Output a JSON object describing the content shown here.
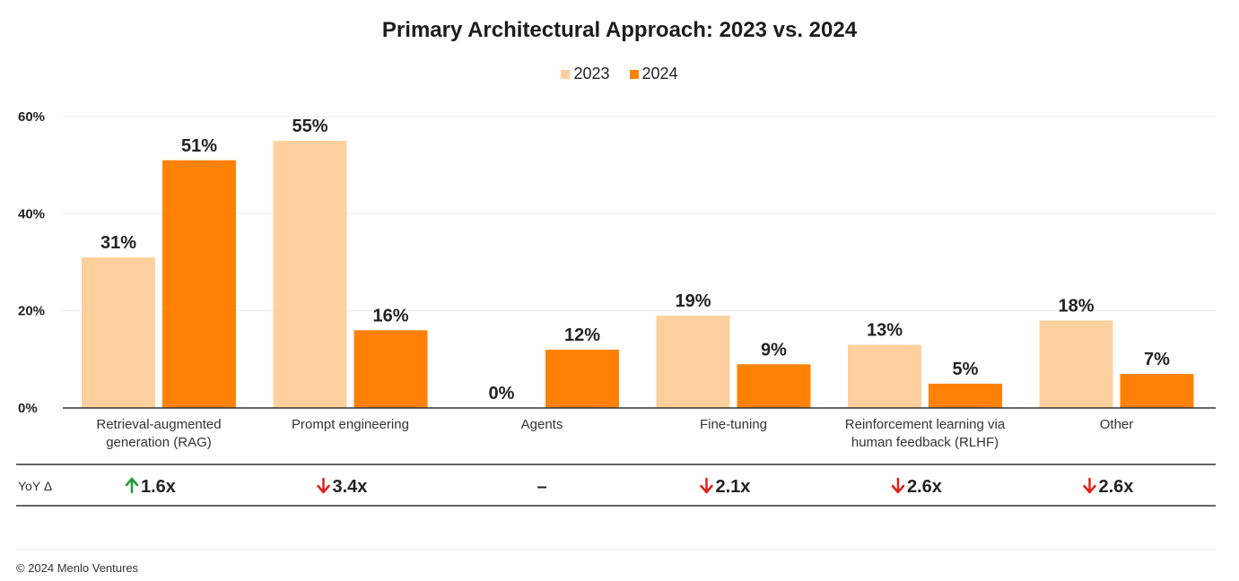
{
  "chart_data": {
    "type": "bar",
    "title": "Primary Architectural Approach: 2023 vs. 2024",
    "categories": [
      [
        "Retrieval-augmented",
        "generation (RAG)"
      ],
      [
        "Prompt engineering"
      ],
      [
        "Agents"
      ],
      [
        "Fine-tuning"
      ],
      [
        "Reinforcement learning via",
        "human feedback (RLHF)"
      ],
      [
        "Other"
      ]
    ],
    "series": [
      {
        "name": "2023",
        "color": "#FDD09D",
        "values": [
          31,
          55,
          0,
          19,
          13,
          18
        ],
        "labels": [
          "31%",
          "55%",
          "0%",
          "19%",
          "13%",
          "18%"
        ]
      },
      {
        "name": "2024",
        "color": "#FF8207",
        "values": [
          51,
          16,
          12,
          9,
          5,
          7
        ],
        "labels": [
          "51%",
          "16%",
          "12%",
          "9%",
          "5%",
          "7%"
        ]
      }
    ],
    "ylim": [
      0,
      60
    ],
    "yticks": [
      0,
      20,
      40,
      60
    ],
    "ytick_labels": [
      "0%",
      "20%",
      "40%",
      "60%"
    ],
    "grid": true,
    "legend_position": "top-center",
    "yoy": {
      "label": "YoY Δ",
      "values": [
        {
          "direction": "up",
          "text": "1.6x"
        },
        {
          "direction": "down",
          "text": "3.4x"
        },
        {
          "direction": "none",
          "text": "–"
        },
        {
          "direction": "down",
          "text": "2.1x"
        },
        {
          "direction": "down",
          "text": "2.6x"
        },
        {
          "direction": "down",
          "text": "2.6x"
        }
      ],
      "up_color": "#1e9e3a",
      "down_color": "#e0201b"
    }
  },
  "footer": {
    "copyright": "© 2024 Menlo Ventures"
  }
}
